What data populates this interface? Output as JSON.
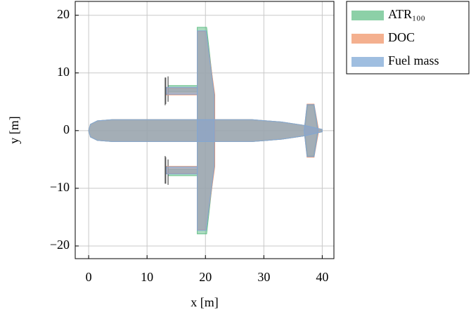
{
  "chart_data": {
    "type": "planform",
    "xlabel": "x [m]",
    "ylabel": "y [m]",
    "xlim": [
      -2.3,
      42
    ],
    "ylim": [
      -22.2,
      22.4
    ],
    "xticks": [
      0,
      10,
      20,
      30,
      40
    ],
    "yticks": [
      {
        "value": -20,
        "label": "−20"
      },
      {
        "value": -10,
        "label": "−10"
      },
      0,
      10,
      20
    ],
    "grid": true,
    "legend": "outside right",
    "alpha": 0.55,
    "series": [
      {
        "name": "ATR₁₀₀",
        "color": "#66c08a",
        "shapes": [
          {
            "x": [
              0,
              0.3,
              1.5,
              4,
              28,
              33,
              37,
              40,
              40,
              37,
              33,
              28,
              4,
              1.5,
              0.3
            ],
            "y": [
              0,
              1.1,
              1.7,
              1.9,
              1.9,
              1.5,
              0.9,
              0.2,
              -0.2,
              -0.9,
              -1.5,
              -1.9,
              -1.9,
              -1.7,
              -1.1
            ]
          },
          {
            "x": [
              18.6,
              20.2,
              21.5,
              21.5,
              20.2,
              18.6
            ],
            "y": [
              17.9,
              17.9,
              6.2,
              -6.2,
              -17.9,
              -17.9
            ]
          },
          {
            "x": [
              13.6,
              18.6,
              18.6,
              13.6
            ],
            "y": [
              7.8,
              7.8,
              6.7,
              6.7
            ]
          },
          {
            "x": [
              13.6,
              18.6,
              18.6,
              13.6
            ],
            "y": [
              -6.7,
              -6.7,
              -7.8,
              -7.8
            ]
          },
          {
            "x": [
              37.5,
              38.5,
              39.2,
              38.5,
              37.5,
              37
            ],
            "y": [
              4.4,
              4.4,
              0,
              -4.4,
              -4.4,
              0
            ]
          }
        ],
        "propellers": [
          {
            "x": [
              13.6,
              13.6
            ],
            "y": [
              9.4,
              5.0
            ]
          },
          {
            "x": [
              13.6,
              13.6
            ],
            "y": [
              -5.0,
              -9.4
            ]
          }
        ]
      },
      {
        "name": "DOC",
        "color": "#f0956a",
        "shapes": [
          {
            "x": [
              0,
              0.3,
              1.5,
              4,
              28,
              33,
              37,
              40,
              40,
              37,
              33,
              28,
              4,
              1.5,
              0.3
            ],
            "y": [
              0,
              1.1,
              1.7,
              1.9,
              1.9,
              1.5,
              0.9,
              0.2,
              -0.2,
              -0.9,
              -1.5,
              -1.9,
              -1.9,
              -1.7,
              -1.1
            ]
          },
          {
            "x": [
              18.6,
              20.1,
              21.6,
              21.6,
              20.1,
              18.6
            ],
            "y": [
              17.2,
              17.2,
              6.2,
              -6.2,
              -17.2,
              -17.2
            ]
          },
          {
            "x": [
              13.2,
              18.6,
              18.6,
              13.2
            ],
            "y": [
              7.4,
              7.4,
              6.2,
              6.2
            ]
          },
          {
            "x": [
              13.2,
              18.6,
              18.6,
              13.2
            ],
            "y": [
              -6.2,
              -6.2,
              -7.4,
              -7.4
            ]
          },
          {
            "x": [
              37.4,
              38.6,
              39.4,
              38.6,
              37.4,
              36.9
            ],
            "y": [
              4.6,
              4.6,
              0,
              -4.6,
              -4.6,
              0
            ]
          }
        ],
        "propellers": [
          {
            "x": [
              13.1,
              13.1
            ],
            "y": [
              9.2,
              4.4
            ]
          },
          {
            "x": [
              13.1,
              13.1
            ],
            "y": [
              -4.4,
              -9.2
            ]
          }
        ]
      },
      {
        "name": "Fuel mass",
        "color": "#7fa8d6",
        "shapes": [
          {
            "x": [
              0,
              0.3,
              1.5,
              4,
              28,
              33,
              37,
              40,
              40,
              37,
              33,
              28,
              4,
              1.5,
              0.3
            ],
            "y": [
              0,
              1.1,
              1.7,
              1.9,
              1.9,
              1.5,
              0.9,
              0.2,
              -0.2,
              -0.9,
              -1.5,
              -1.9,
              -1.9,
              -1.7,
              -1.1
            ]
          },
          {
            "x": [
              18.6,
              20.1,
              21.5,
              21.5,
              20.1,
              18.6
            ],
            "y": [
              17.3,
              17.3,
              6.2,
              -6.2,
              -17.3,
              -17.3
            ]
          },
          {
            "x": [
              13.3,
              18.6,
              18.6,
              13.3
            ],
            "y": [
              7.5,
              7.5,
              6.3,
              6.3
            ]
          },
          {
            "x": [
              13.3,
              18.6,
              18.6,
              13.3
            ],
            "y": [
              -6.3,
              -6.3,
              -7.5,
              -7.5
            ]
          },
          {
            "x": [
              37.4,
              38.6,
              39.3,
              38.6,
              37.4,
              36.9
            ],
            "y": [
              4.5,
              4.5,
              0,
              -4.5,
              -4.5,
              0
            ]
          }
        ],
        "propellers": [
          {
            "x": [
              13.2,
              13.2
            ],
            "y": [
              9.2,
              4.6
            ]
          },
          {
            "x": [
              13.2,
              13.2
            ],
            "y": [
              -4.6,
              -9.2
            ]
          }
        ]
      }
    ]
  }
}
